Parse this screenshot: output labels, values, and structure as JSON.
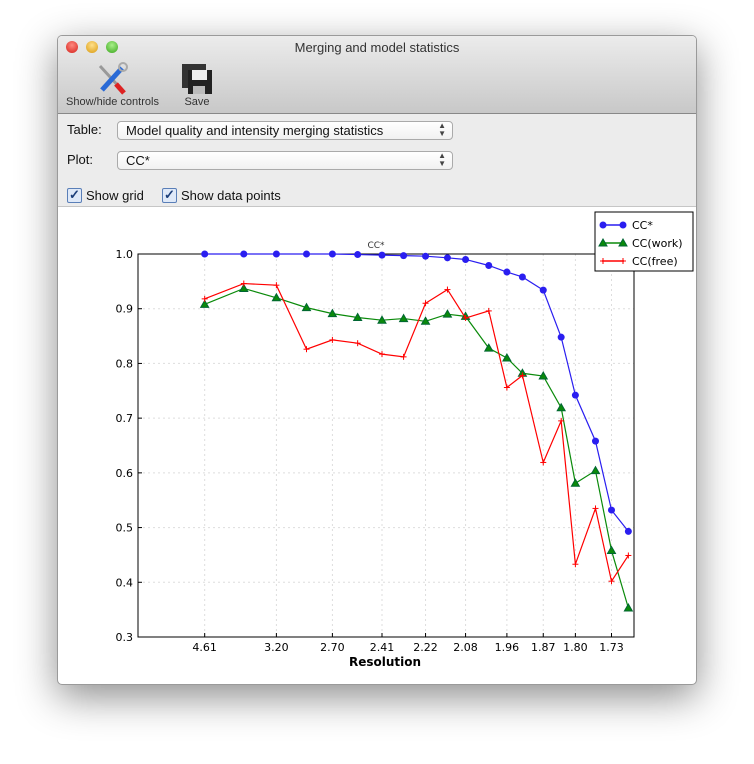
{
  "window": {
    "title": "Merging and model statistics"
  },
  "toolbar": {
    "show_hide_label": "Show/hide controls",
    "save_label": "Save"
  },
  "controls": {
    "table_label": "Table:",
    "table_value": "Model quality and intensity merging statistics",
    "plot_label": "Plot:",
    "plot_value": "CC*",
    "show_grid_label": "Show grid",
    "show_grid": true,
    "show_points_label": "Show data points",
    "show_points": true
  },
  "chart_data": {
    "type": "line",
    "title": "CC*",
    "xlabel": "Resolution",
    "ylabel": "",
    "x_scale": "1/d^2",
    "xlim_inv_d2": [
      0,
      0.35
    ],
    "ylim": [
      0.3,
      1.0
    ],
    "yticks": [
      "0.3",
      "0.4",
      "0.5",
      "0.6",
      "0.7",
      "0.8",
      "0.9",
      "1.0"
    ],
    "xticks": [
      "4.61",
      "3.20",
      "2.70",
      "2.41",
      "2.22",
      "2.08",
      "1.96",
      "1.87",
      "1.80",
      "1.73"
    ],
    "grid": true,
    "legend": "top-right",
    "x": [
      4.61,
      3.66,
      3.2,
      2.9,
      2.7,
      2.54,
      2.41,
      2.31,
      2.22,
      2.14,
      2.08,
      2.01,
      1.96,
      1.92,
      1.87,
      1.83,
      1.8,
      1.76,
      1.73,
      1.7
    ],
    "series": [
      {
        "name": "CC*",
        "color": "#2a1ef0",
        "marker": "circle",
        "values": [
          1.0,
          1.0,
          1.0,
          1.0,
          1.0,
          0.999,
          0.998,
          0.997,
          0.996,
          0.993,
          0.99,
          0.979,
          0.967,
          0.958,
          0.934,
          0.848,
          0.742,
          0.658,
          0.532,
          0.493
        ]
      },
      {
        "name": "CC(work)",
        "color": "#0a8a0a",
        "marker": "triangle",
        "values": [
          0.908,
          0.937,
          0.92,
          0.902,
          0.891,
          0.884,
          0.879,
          0.882,
          0.877,
          0.89,
          0.886,
          0.828,
          0.81,
          0.782,
          0.777,
          0.719,
          0.581,
          0.604,
          0.458,
          0.353
        ]
      },
      {
        "name": "CC(free)",
        "color": "#ff0000",
        "marker": "plus",
        "values": [
          0.918,
          0.946,
          0.943,
          0.826,
          0.843,
          0.837,
          0.817,
          0.812,
          0.91,
          0.935,
          0.883,
          0.896,
          0.756,
          0.778,
          0.619,
          0.695,
          0.433,
          0.535,
          0.402,
          0.449
        ]
      }
    ]
  }
}
